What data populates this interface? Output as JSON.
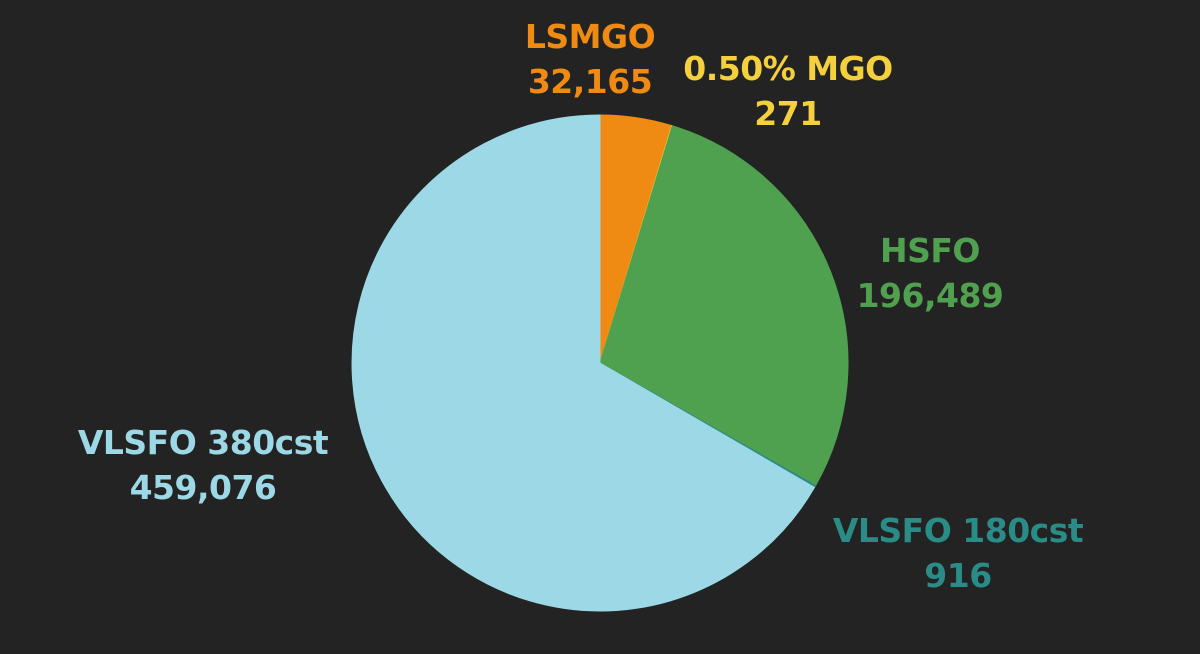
{
  "chart_data": {
    "type": "pie",
    "title": "",
    "legend": "none",
    "slices": [
      {
        "name": "LSMGO",
        "value": 32165,
        "value_label": "32,165",
        "color": "#EF8A12",
        "label_color": "#EF8A12"
      },
      {
        "name": "0.50% MGO",
        "value": 271,
        "value_label": "271",
        "color": "#F4D03F",
        "label_color": "#F4D03F"
      },
      {
        "name": "HSFO",
        "value": 196489,
        "value_label": "196,489",
        "color": "#4FA150",
        "label_color": "#4FA150"
      },
      {
        "name": "VLSFO 180cst",
        "value": 916,
        "value_label": "916",
        "color": "#2A8C86",
        "label_color": "#2A8C86"
      },
      {
        "name": "VLSFO 380cst",
        "value": 459076,
        "value_label": "459,076",
        "color": "#9CD8E6",
        "label_color": "#9CD8E6"
      }
    ]
  }
}
